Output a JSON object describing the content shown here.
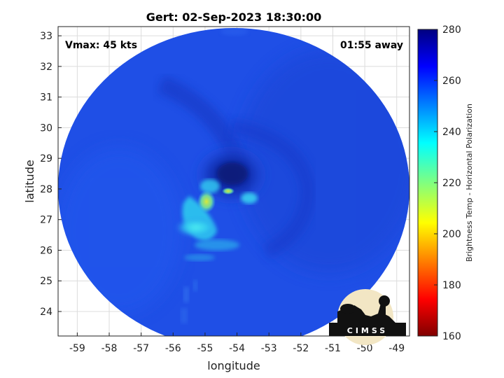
{
  "title": "Gert: 02-Sep-2023 18:30:00",
  "annotations": {
    "vmax": "Vmax: 45 kts",
    "time_away": "01:55 away"
  },
  "logo": {
    "text": "CIMSS"
  },
  "colors": {
    "cold_core": "#0a1d8a",
    "swath": "#1f4fe6",
    "warm_band": "#22d4ee",
    "peak": "#e8e33a"
  },
  "chart_data": {
    "type": "heatmap",
    "xlabel": "longitude",
    "ylabel": "latitude",
    "xlim": [
      -59.6,
      -48.6
    ],
    "ylim": [
      23.2,
      33.3
    ],
    "xticks": [
      -59,
      -58,
      -57,
      -56,
      -55,
      -54,
      -53,
      -52,
      -51,
      -50,
      -49
    ],
    "yticks": [
      24,
      25,
      26,
      27,
      28,
      29,
      30,
      31,
      32,
      33
    ],
    "grid": true,
    "swath_center": [
      -54.1,
      28.2
    ],
    "storm_center": [
      -54.0,
      28.3
    ],
    "colorbar": {
      "label": "Brightness Temp - Horizontal Polarization",
      "range": [
        160,
        280
      ],
      "ticks": [
        160,
        180,
        200,
        220,
        240,
        260,
        280
      ],
      "colormap": "jet"
    }
  }
}
